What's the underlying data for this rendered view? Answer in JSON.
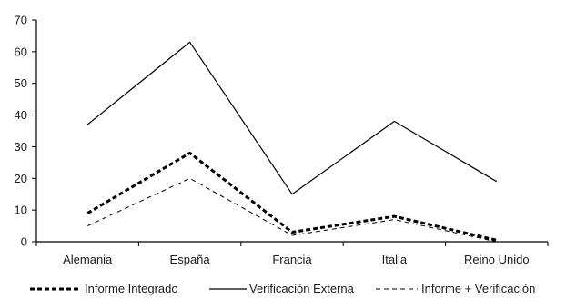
{
  "chart_data": {
    "type": "line",
    "categories": [
      "Alemania",
      "España",
      "Francia",
      "Italia",
      "Reino Unido"
    ],
    "ylim": [
      0,
      70
    ],
    "yticks": [
      0,
      10,
      20,
      30,
      40,
      50,
      60,
      70
    ],
    "grid": false,
    "legend_position": "bottom",
    "series": [
      {
        "name": "Informe Integrado",
        "values": [
          9,
          28,
          3,
          8,
          0.5
        ],
        "style": "dashed-bold",
        "color": "#000000"
      },
      {
        "name": "Verificación Externa",
        "values": [
          37,
          63,
          15,
          38,
          19
        ],
        "style": "solid",
        "color": "#000000"
      },
      {
        "name": "Informe + Verificación",
        "values": [
          5,
          20,
          2,
          7,
          0
        ],
        "style": "dashed-thin",
        "color": "#000000"
      }
    ]
  }
}
